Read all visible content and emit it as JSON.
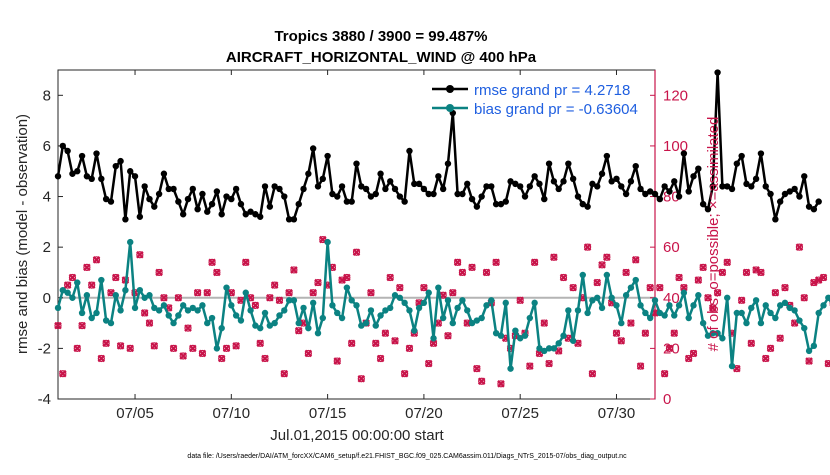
{
  "chart_data": {
    "type": "line",
    "title": [
      "Tropics 3880 / 3900 = 99.487%",
      "AIRCRAFT_HORIZONTAL_WIND @ 400 hPa"
    ],
    "xlabel": "Jul.01,2015 00:00:00 start",
    "ylabel_left": "rmse and bias (model - observation)",
    "ylabel_right": "# of obs: o=possible; ×=assimilated",
    "xlim": [
      1,
      32
    ],
    "ylim_left": [
      -4,
      9
    ],
    "ylim_right": [
      0,
      130
    ],
    "x_ticks": [
      {
        "x": 5,
        "label": "07/05"
      },
      {
        "x": 10,
        "label": "07/10"
      },
      {
        "x": 15,
        "label": "07/15"
      },
      {
        "x": 20,
        "label": "07/20"
      },
      {
        "x": 25,
        "label": "07/25"
      },
      {
        "x": 30,
        "label": "07/30"
      }
    ],
    "y_ticks_left": [
      -4,
      -2,
      0,
      2,
      4,
      6,
      8
    ],
    "y_ticks_right": [
      0,
      20,
      40,
      60,
      80,
      100,
      120
    ],
    "zero_line": 0,
    "legend_location": "top-right",
    "series": [
      {
        "name": "rmse grand pr = 4.2718",
        "color": "#000000",
        "axis": "left",
        "marker": "filled-circle",
        "x_start": 1.0,
        "x_step": 0.25,
        "values": [
          4.8,
          6.0,
          5.8,
          4.9,
          5.0,
          5.6,
          4.8,
          4.7,
          5.7,
          4.7,
          3.9,
          3.8,
          5.2,
          5.4,
          3.1,
          5.0,
          4.8,
          3.2,
          4.4,
          3.9,
          3.6,
          4.1,
          4.9,
          4.3,
          4.3,
          3.8,
          3.3,
          3.9,
          4.3,
          3.5,
          4.1,
          3.4,
          3.7,
          4.2,
          3.3,
          4.0,
          3.9,
          4.3,
          3.7,
          3.3,
          3.4,
          3.3,
          3.2,
          4.4,
          3.6,
          4.4,
          4.3,
          4.0,
          3.1,
          3.1,
          3.7,
          4.3,
          4.9,
          5.9,
          4.4,
          4.7,
          5.6,
          4.1,
          4.0,
          4.4,
          3.8,
          3.8,
          5.3,
          4.4,
          4.3,
          4.0,
          4.1,
          4.9,
          4.3,
          4.6,
          4.3,
          4.0,
          3.8,
          5.8,
          4.5,
          4.5,
          4.3,
          4.1,
          4.1,
          4.8,
          4.3,
          5.3,
          7.3,
          4.1,
          4.1,
          4.5,
          3.9,
          3.6,
          4.0,
          4.4,
          4.4,
          3.7,
          3.7,
          3.8,
          4.6,
          4.5,
          4.4,
          4.0,
          4.4,
          4.8,
          4.5,
          3.9,
          5.3,
          4.6,
          4.3,
          4.6,
          5.3,
          4.7,
          4.0,
          3.7,
          3.6,
          4.5,
          4.4,
          4.9,
          5.6,
          4.6,
          4.7,
          4.4,
          4.1,
          4.6,
          5.2,
          4.3,
          4.1,
          4.2,
          4.1,
          3.9,
          4.4,
          4.2,
          4.6,
          4.0,
          5.7,
          4.2,
          4.8,
          5.1,
          3.7,
          3.5,
          4.4,
          8.9,
          4.4,
          4.4,
          4.3,
          5.3,
          5.6,
          4.5,
          4.4,
          4.7,
          5.7,
          4.4,
          4.1,
          3.1,
          3.8,
          4.1,
          4.2,
          4.3,
          4.0,
          4.8,
          3.6,
          3.5,
          3.8
        ]
      },
      {
        "name": "bias grand pr = -0.63604",
        "color": "#0b8282",
        "axis": "left",
        "marker": "filled-circle",
        "x_start": 1.0,
        "x_step": 0.25,
        "values": [
          -0.4,
          0.3,
          0.2,
          0.0,
          0.6,
          -0.6,
          0.1,
          -0.8,
          -0.6,
          0.7,
          -0.9,
          -1.0,
          0.1,
          -0.5,
          0.3,
          2.2,
          -0.4,
          0.3,
          0.0,
          0.1,
          -0.4,
          -0.5,
          -0.3,
          -0.7,
          -1.0,
          -0.7,
          -0.3,
          -0.5,
          -0.4,
          -0.5,
          -0.3,
          -1.0,
          -0.8,
          -2.0,
          -1.2,
          0.4,
          -0.3,
          -0.7,
          -0.9,
          0.2,
          -0.5,
          -1.1,
          -1.2,
          -0.6,
          -1.1,
          -1.0,
          -0.7,
          -0.5,
          -0.1,
          -0.1,
          -1.0,
          -0.4,
          -1.2,
          -0.2,
          -1.4,
          -0.8,
          2.2,
          -0.3,
          -0.6,
          -0.8,
          0.4,
          -0.1,
          -0.3,
          -1.1,
          -1.0,
          -0.5,
          -1.1,
          -0.7,
          -0.5,
          -0.4,
          0.1,
          0.0,
          -0.2,
          -0.5,
          -1.3,
          -0.4,
          -0.2,
          0.2,
          -1.6,
          0.4,
          -0.8,
          -0.1,
          -1.0,
          -0.4,
          -0.1,
          -0.5,
          -1.0,
          -0.9,
          -0.8,
          -0.3,
          -0.1,
          -1.4,
          -1.5,
          -0.2,
          -2.8,
          -1.3,
          -1.6,
          -1.5,
          -0.8,
          -0.2,
          -2.0,
          -2.1,
          -2.0,
          -2.0,
          -1.8,
          -1.5,
          -0.5,
          -1.7,
          -0.5,
          0.9,
          -0.6,
          -0.1,
          0.0,
          -0.4,
          0.9,
          0.0,
          -0.3,
          -1.0,
          0.1,
          0.4,
          0.7,
          -0.3,
          -0.6,
          -0.8,
          -0.1,
          -0.6,
          -0.7,
          -0.3,
          -0.7,
          -0.3,
          0.2,
          -0.8,
          -0.3,
          0.1,
          -1.0,
          -1.5,
          -1.4,
          -1.4,
          -1.6,
          0.0,
          -2.7,
          -0.6,
          -0.6,
          -1.0,
          -0.4,
          -0.1,
          -1.0,
          -0.3,
          -0.6,
          -0.8,
          -0.3,
          -0.2,
          -0.4,
          -0.5,
          -0.9,
          -1.2,
          -2.1,
          -1.9,
          -0.6,
          -0.3,
          0.0,
          -0.3,
          -1.0
        ]
      },
      {
        "name": "# of obs possible",
        "color": "#c8144a",
        "axis": "right",
        "marker": "open-circle",
        "x_start": 1.0,
        "x_step": 0.25,
        "values": [
          29,
          10,
          45,
          48,
          20,
          29,
          52,
          45,
          55,
          16,
          22,
          42,
          48,
          21,
          47,
          20,
          42,
          57,
          34,
          30,
          21,
          50,
          40,
          36,
          20,
          40,
          17,
          28,
          20,
          42,
          18,
          42,
          54,
          50,
          16,
          20,
          42,
          21,
          39,
          54,
          40,
          37,
          22,
          16,
          40,
          45,
          39,
          10,
          42,
          51,
          27,
          30,
          18,
          42,
          46,
          63,
          45,
          52,
          15,
          47,
          48,
          22,
          58,
          8,
          30,
          42,
          22,
          16,
          26,
          48,
          23,
          44,
          10,
          20,
          26,
          38,
          44,
          14,
          22,
          30,
          41,
          25,
          42,
          54,
          50,
          30,
          52,
          12,
          7,
          50,
          38,
          54,
          6,
          24,
          20,
          25,
          39,
          26,
          13,
          54,
          18,
          30,
          14,
          56,
          19,
          48,
          24,
          44,
          22,
          40,
          60,
          10,
          46,
          53,
          56,
          38,
          26,
          23,
          50,
          30,
          55,
          13,
          26,
          44,
          34,
          44,
          10,
          20,
          26,
          48,
          44,
          16,
          18,
          47,
          52,
          40,
          36,
          42,
          50,
          54,
          26,
          12,
          39,
          50,
          22,
          51,
          50,
          16,
          20,
          42,
          24,
          44,
          37,
          30,
          60,
          40,
          15,
          46,
          47,
          48,
          14,
          38
        ]
      },
      {
        "name": "# of obs assimilated",
        "color": "#c8144a",
        "axis": "right",
        "marker": "cross",
        "x_start": 1.0,
        "x_step": 0.25,
        "values": [
          29,
          10,
          45,
          48,
          20,
          29,
          52,
          45,
          55,
          16,
          22,
          42,
          48,
          21,
          47,
          20,
          42,
          57,
          34,
          30,
          21,
          50,
          40,
          36,
          20,
          40,
          17,
          28,
          20,
          42,
          18,
          42,
          54,
          50,
          16,
          20,
          42,
          21,
          39,
          54,
          40,
          37,
          22,
          16,
          40,
          45,
          39,
          10,
          42,
          51,
          27,
          30,
          18,
          42,
          46,
          63,
          45,
          52,
          15,
          47,
          48,
          22,
          58,
          8,
          30,
          42,
          22,
          16,
          26,
          48,
          23,
          44,
          10,
          20,
          26,
          38,
          44,
          14,
          22,
          30,
          41,
          25,
          42,
          54,
          50,
          30,
          52,
          12,
          7,
          50,
          38,
          54,
          6,
          24,
          20,
          25,
          39,
          26,
          13,
          54,
          18,
          30,
          14,
          56,
          19,
          48,
          24,
          44,
          22,
          40,
          60,
          10,
          46,
          53,
          56,
          38,
          26,
          23,
          50,
          30,
          55,
          13,
          26,
          44,
          34,
          44,
          10,
          20,
          26,
          48,
          44,
          16,
          18,
          47,
          52,
          40,
          36,
          42,
          50,
          54,
          26,
          12,
          39,
          50,
          22,
          51,
          50,
          16,
          20,
          42,
          24,
          44,
          37,
          30,
          60,
          40,
          15,
          46,
          47,
          48,
          14,
          38
        ]
      }
    ]
  },
  "footnote": "data file: /Users/raeder/DAI/ATM_forcXX/CAM6_setup/f.e21.FHIST_BGC.f09_025.CAM6assim.011/Diags_NTrS_2015-07/obs_diag_output.nc"
}
